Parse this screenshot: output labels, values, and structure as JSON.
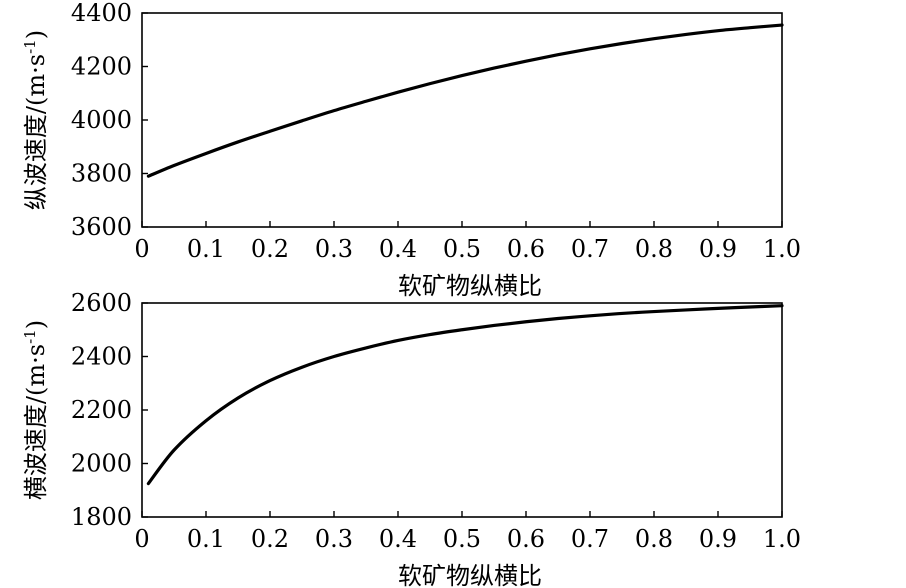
{
  "chart_data": [
    {
      "type": "line",
      "xlabel": "软矿物纵横比",
      "ylabel_main": "纵波速度/(m·s",
      "ylabel_sup": "-1",
      "ylabel_close": ")",
      "xlim": [
        0,
        1.0
      ],
      "ylim": [
        3600,
        4400
      ],
      "xticks": [
        "0",
        "0.1",
        "0.2",
        "0.3",
        "0.4",
        "0.5",
        "0.6",
        "0.7",
        "0.8",
        "0.9",
        "1.0"
      ],
      "yticks": [
        "3600",
        "3800",
        "4000",
        "4200",
        "4400"
      ],
      "grid": false,
      "series": [
        {
          "color": "#000000",
          "x": [
            0.01,
            0.05,
            0.1,
            0.15,
            0.2,
            0.25,
            0.3,
            0.35,
            0.4,
            0.45,
            0.5,
            0.55,
            0.6,
            0.65,
            0.7,
            0.75,
            0.8,
            0.85,
            0.9,
            0.95,
            1.0
          ],
          "y": [
            3790,
            3830,
            3875,
            3918,
            3958,
            3997,
            4035,
            4070,
            4104,
            4136,
            4166,
            4194,
            4220,
            4244,
            4266,
            4286,
            4304,
            4320,
            4334,
            4345,
            4355
          ]
        }
      ]
    },
    {
      "type": "line",
      "xlabel": "软矿物纵横比",
      "ylabel_main": "横波速度/(m·s",
      "ylabel_sup": "-1",
      "ylabel_close": ")",
      "xlim": [
        0,
        1.0
      ],
      "ylim": [
        1800,
        2600
      ],
      "xticks": [
        "0",
        "0.1",
        "0.2",
        "0.3",
        "0.4",
        "0.5",
        "0.6",
        "0.7",
        "0.8",
        "0.9",
        "1.0"
      ],
      "yticks": [
        "1800",
        "2000",
        "2200",
        "2400",
        "2600"
      ],
      "grid": false,
      "series": [
        {
          "color": "#000000",
          "x": [
            0.01,
            0.05,
            0.1,
            0.15,
            0.2,
            0.25,
            0.3,
            0.35,
            0.4,
            0.45,
            0.5,
            0.55,
            0.6,
            0.65,
            0.7,
            0.75,
            0.8,
            0.85,
            0.9,
            0.95,
            1.0
          ],
          "y": [
            1925,
            2050,
            2160,
            2245,
            2310,
            2360,
            2400,
            2432,
            2460,
            2482,
            2500,
            2516,
            2530,
            2542,
            2552,
            2561,
            2568,
            2574,
            2580,
            2585,
            2590
          ]
        }
      ]
    }
  ]
}
